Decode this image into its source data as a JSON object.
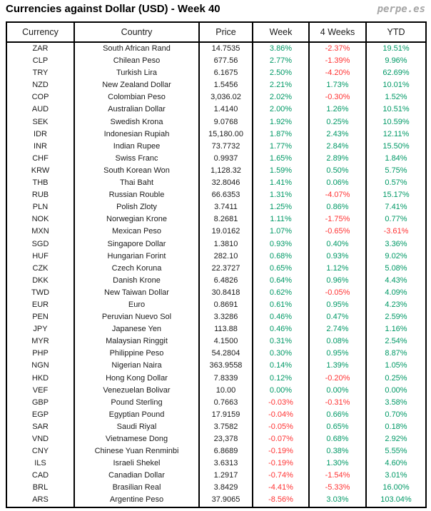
{
  "header": {
    "title": "Currencies against Dollar (USD) - Week 40",
    "brand": "perpe.es"
  },
  "chart_data": {
    "type": "table",
    "title": "Currencies against Dollar (USD) - Week 40",
    "columns": [
      "Currency",
      "Country",
      "Price",
      "Week",
      "4 Weeks",
      "YTD"
    ],
    "percent_columns": [
      3,
      4,
      5
    ],
    "colors": {
      "positive": "#009966",
      "negative": "#FF3333",
      "text": "#1a1a1a"
    },
    "color_rule": "percent values starting with '-' are negative (red), otherwise positive (green)",
    "rows": [
      [
        "ZAR",
        "South African Rand",
        "14.7535",
        "3.86%",
        "-2.37%",
        "19.51%"
      ],
      [
        "CLP",
        "Chilean Peso",
        "677.56",
        "2.77%",
        "-1.39%",
        "9.96%"
      ],
      [
        "TRY",
        "Turkish Lira",
        "6.1675",
        "2.50%",
        "-4.20%",
        "62.69%"
      ],
      [
        "NZD",
        "New Zealand Dollar",
        "1.5456",
        "2.21%",
        "1.73%",
        "10.01%"
      ],
      [
        "COP",
        "Colombian Peso",
        "3,036.02",
        "2.02%",
        "-0.30%",
        "1.52%"
      ],
      [
        "AUD",
        "Australian Dollar",
        "1.4140",
        "2.00%",
        "1.26%",
        "10.51%"
      ],
      [
        "SEK",
        "Swedish Krona",
        "9.0768",
        "1.92%",
        "0.25%",
        "10.59%"
      ],
      [
        "IDR",
        "Indonesian Rupiah",
        "15,180.00",
        "1.87%",
        "2.43%",
        "12.11%"
      ],
      [
        "INR",
        "Indian Rupee",
        "73.7732",
        "1.77%",
        "2.84%",
        "15.50%"
      ],
      [
        "CHF",
        "Swiss Franc",
        "0.9937",
        "1.65%",
        "2.89%",
        "1.84%"
      ],
      [
        "KRW",
        "South Korean Won",
        "1,128.32",
        "1.59%",
        "0.50%",
        "5.75%"
      ],
      [
        "THB",
        "Thai Baht",
        "32.8046",
        "1.41%",
        "0.06%",
        "0.57%"
      ],
      [
        "RUB",
        "Russian Rouble",
        "66.6353",
        "1.31%",
        "-4.07%",
        "15.17%"
      ],
      [
        "PLN",
        "Polish Zloty",
        "3.7411",
        "1.25%",
        "0.86%",
        "7.41%"
      ],
      [
        "NOK",
        "Norwegian Krone",
        "8.2681",
        "1.11%",
        "-1.75%",
        "0.77%"
      ],
      [
        "MXN",
        "Mexican Peso",
        "19.0162",
        "1.07%",
        "-0.65%",
        "-3.61%"
      ],
      [
        "SGD",
        "Singapore Dollar",
        "1.3810",
        "0.93%",
        "0.40%",
        "3.36%"
      ],
      [
        "HUF",
        "Hungarian Forint",
        "282.10",
        "0.68%",
        "0.93%",
        "9.02%"
      ],
      [
        "CZK",
        "Czech Koruna",
        "22.3727",
        "0.65%",
        "1.12%",
        "5.08%"
      ],
      [
        "DKK",
        "Danish Krone",
        "6.4826",
        "0.64%",
        "0.96%",
        "4.43%"
      ],
      [
        "TWD",
        "New Taiwan Dollar",
        "30.8418",
        "0.62%",
        "-0.05%",
        "4.09%"
      ],
      [
        "EUR",
        "Euro",
        "0.8691",
        "0.61%",
        "0.95%",
        "4.23%"
      ],
      [
        "PEN",
        "Peruvian Nuevo Sol",
        "3.3286",
        "0.46%",
        "0.47%",
        "2.59%"
      ],
      [
        "JPY",
        "Japanese Yen",
        "113.88",
        "0.46%",
        "2.74%",
        "1.16%"
      ],
      [
        "MYR",
        "Malaysian Ringgit",
        "4.1500",
        "0.31%",
        "0.08%",
        "2.54%"
      ],
      [
        "PHP",
        "Philippine Peso",
        "54.2804",
        "0.30%",
        "0.95%",
        "8.87%"
      ],
      [
        "NGN",
        "Nigerian Naira",
        "363.9558",
        "0.14%",
        "1.39%",
        "1.05%"
      ],
      [
        "HKD",
        "Hong Kong Dollar",
        "7.8339",
        "0.12%",
        "-0.20%",
        "0.25%"
      ],
      [
        "VEF",
        "Venezuelan Bolivar",
        "10.00",
        "0.00%",
        "0.00%",
        "0.00%"
      ],
      [
        "GBP",
        "Pound Sterling",
        "0.7663",
        "-0.03%",
        "-0.31%",
        "3.58%"
      ],
      [
        "EGP",
        "Egyptian Pound",
        "17.9159",
        "-0.04%",
        "0.66%",
        "0.70%"
      ],
      [
        "SAR",
        "Saudi Riyal",
        "3.7582",
        "-0.05%",
        "0.65%",
        "0.18%"
      ],
      [
        "VND",
        "Vietnamese Dong",
        "23,378",
        "-0.07%",
        "0.68%",
        "2.92%"
      ],
      [
        "CNY",
        "Chinese Yuan Renminbi",
        "6.8689",
        "-0.19%",
        "0.38%",
        "5.55%"
      ],
      [
        "ILS",
        "Israeli Shekel",
        "3.6313",
        "-0.19%",
        "1.30%",
        "4.60%"
      ],
      [
        "CAD",
        "Canadian Dollar",
        "1.2917",
        "-0.74%",
        "-1.54%",
        "3.01%"
      ],
      [
        "BRL",
        "Brasilian Real",
        "3.8429",
        "-4.41%",
        "-5.33%",
        "16.00%"
      ],
      [
        "ARS",
        "Argentine Peso",
        "37.9065",
        "-8.56%",
        "3.03%",
        "103.04%"
      ]
    ]
  }
}
